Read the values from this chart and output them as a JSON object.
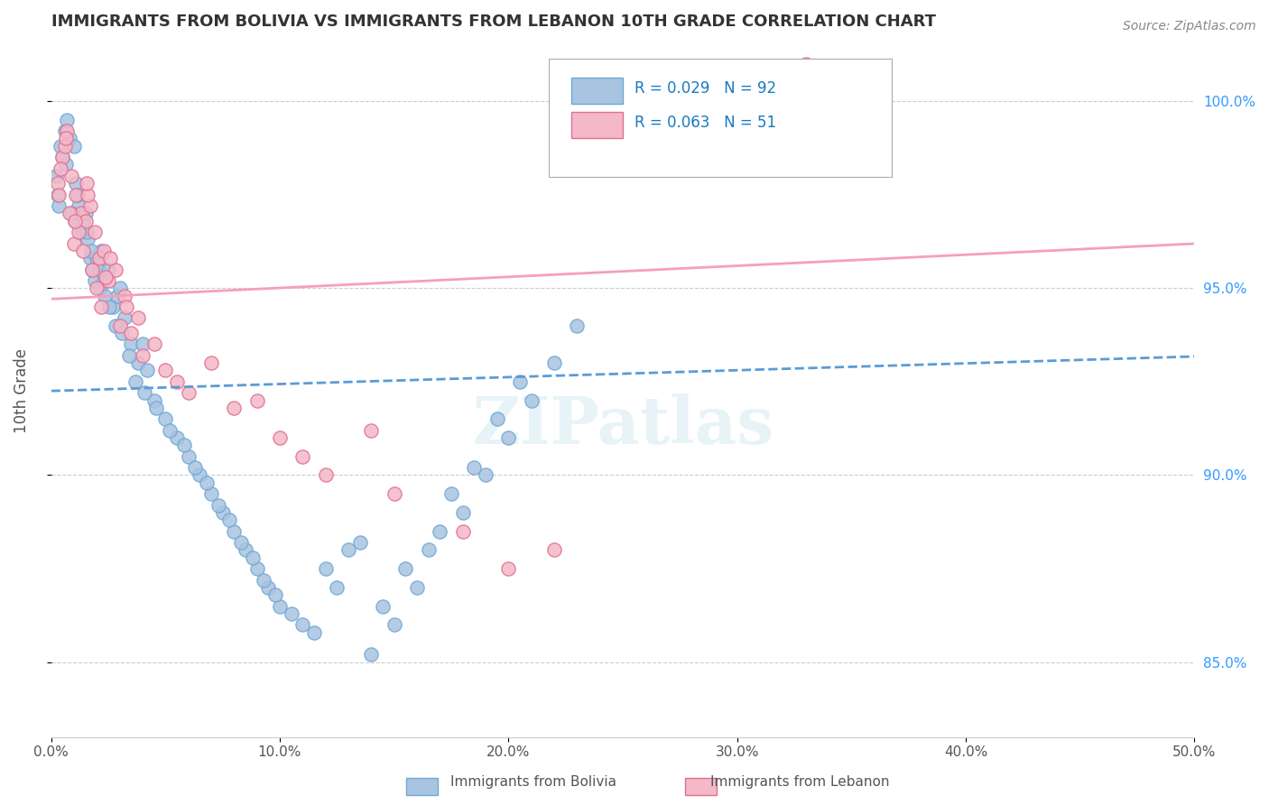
{
  "title": "IMMIGRANTS FROM BOLIVIA VS IMMIGRANTS FROM LEBANON 10TH GRADE CORRELATION CHART",
  "source": "Source: ZipAtlas.com",
  "xlabel": "",
  "ylabel": "10th Grade",
  "xlim": [
    0.0,
    50.0
  ],
  "ylim": [
    83.0,
    101.5
  ],
  "x_ticks": [
    0.0,
    10.0,
    20.0,
    30.0,
    40.0,
    50.0
  ],
  "x_tick_labels": [
    "0.0%",
    "10.0%",
    "20.0%",
    "30.0%",
    "40.0%",
    "50.0%"
  ],
  "y_ticks": [
    85.0,
    90.0,
    95.0,
    100.0
  ],
  "y_tick_labels": [
    "85.0%",
    "90.0%",
    "95.0%",
    "100.0%"
  ],
  "bolivia_color": "#a8c4e0",
  "lebanon_color": "#f4b8c8",
  "bolivia_edge": "#6fa8d4",
  "lebanon_edge": "#e07090",
  "bolivia_line_color": "#5b9bd5",
  "lebanon_line_color": "#f4a0b8",
  "R_bolivia": 0.029,
  "N_bolivia": 92,
  "R_lebanon": 0.063,
  "N_lebanon": 51,
  "legend_label_bolivia": "Immigrants from Bolivia",
  "legend_label_lebanon": "Immigrants from Lebanon",
  "legend_R_color": "#1f77b4",
  "watermark": "ZIPatlas",
  "bolivia_x": [
    0.3,
    0.5,
    0.6,
    0.8,
    1.0,
    1.1,
    1.2,
    1.3,
    1.4,
    1.5,
    1.6,
    1.7,
    1.8,
    1.9,
    2.0,
    2.1,
    2.2,
    2.3,
    2.5,
    2.7,
    2.9,
    3.0,
    3.2,
    3.5,
    3.8,
    4.0,
    4.2,
    4.5,
    5.0,
    5.5,
    6.0,
    6.5,
    7.0,
    7.5,
    8.0,
    8.5,
    9.0,
    9.5,
    10.0,
    11.0,
    12.0,
    13.0,
    14.0,
    15.0,
    16.0,
    17.0,
    18.0,
    19.0,
    20.0,
    21.0,
    22.0,
    23.0,
    0.2,
    0.4,
    0.7,
    0.9,
    1.15,
    1.55,
    1.75,
    2.15,
    2.35,
    2.55,
    2.8,
    3.1,
    3.4,
    3.7,
    4.1,
    4.6,
    5.2,
    5.8,
    6.3,
    6.8,
    7.3,
    7.8,
    8.3,
    8.8,
    9.3,
    9.8,
    10.5,
    11.5,
    12.5,
    13.5,
    14.5,
    15.5,
    16.5,
    17.5,
    18.5,
    19.5,
    20.5,
    0.35,
    0.65,
    1.05
  ],
  "bolivia_y": [
    97.5,
    98.5,
    99.2,
    99.0,
    98.8,
    97.8,
    97.2,
    96.5,
    96.8,
    97.0,
    96.3,
    95.8,
    95.5,
    95.2,
    95.8,
    95.5,
    96.0,
    95.2,
    95.5,
    94.5,
    94.8,
    95.0,
    94.2,
    93.5,
    93.0,
    93.5,
    92.8,
    92.0,
    91.5,
    91.0,
    90.5,
    90.0,
    89.5,
    89.0,
    88.5,
    88.0,
    87.5,
    87.0,
    86.5,
    86.0,
    87.5,
    88.0,
    85.2,
    86.0,
    87.0,
    88.5,
    89.0,
    90.0,
    91.0,
    92.0,
    93.0,
    94.0,
    98.0,
    98.8,
    99.5,
    97.0,
    97.5,
    96.5,
    96.0,
    95.0,
    94.8,
    94.5,
    94.0,
    93.8,
    93.2,
    92.5,
    92.2,
    91.8,
    91.2,
    90.8,
    90.2,
    89.8,
    89.2,
    88.8,
    88.2,
    87.8,
    87.2,
    86.8,
    86.3,
    85.8,
    87.0,
    88.2,
    86.5,
    87.5,
    88.0,
    89.5,
    90.2,
    91.5,
    92.5,
    97.2,
    98.3,
    96.8
  ],
  "lebanon_x": [
    0.3,
    0.5,
    0.7,
    0.9,
    1.1,
    1.3,
    1.5,
    1.7,
    1.9,
    2.1,
    2.3,
    2.5,
    2.8,
    3.2,
    3.8,
    4.5,
    5.5,
    7.0,
    9.0,
    11.0,
    14.0,
    20.0,
    33.0,
    0.4,
    0.6,
    0.8,
    1.0,
    1.2,
    1.4,
    1.6,
    1.8,
    2.0,
    2.2,
    2.6,
    3.0,
    3.5,
    4.0,
    5.0,
    6.0,
    8.0,
    10.0,
    12.0,
    15.0,
    18.0,
    22.0,
    0.35,
    0.65,
    1.05,
    1.55,
    2.4,
    3.3
  ],
  "lebanon_y": [
    97.8,
    98.5,
    99.2,
    98.0,
    97.5,
    97.0,
    96.8,
    97.2,
    96.5,
    95.8,
    96.0,
    95.2,
    95.5,
    94.8,
    94.2,
    93.5,
    92.5,
    93.0,
    92.0,
    90.5,
    91.2,
    87.5,
    101.0,
    98.2,
    98.8,
    97.0,
    96.2,
    96.5,
    96.0,
    97.5,
    95.5,
    95.0,
    94.5,
    95.8,
    94.0,
    93.8,
    93.2,
    92.8,
    92.2,
    91.8,
    91.0,
    90.0,
    89.5,
    88.5,
    88.0,
    97.5,
    99.0,
    96.8,
    97.8,
    95.3,
    94.5
  ]
}
